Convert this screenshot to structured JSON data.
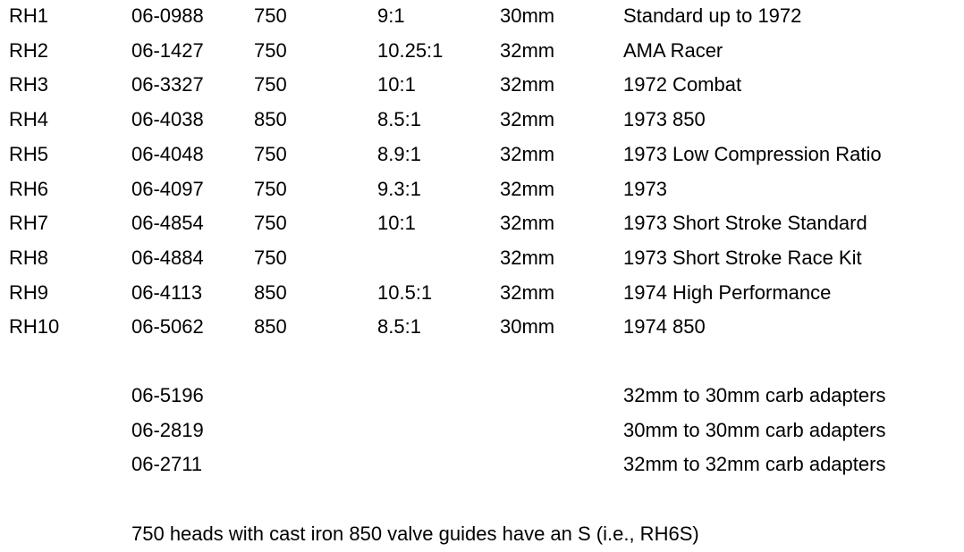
{
  "table": {
    "rows": [
      [
        "RH1",
        "06-0988",
        "750",
        "9:1",
        "30mm",
        "Standard up to 1972"
      ],
      [
        "RH2",
        "06-1427",
        "750",
        "10.25:1",
        "32mm",
        "AMA Racer"
      ],
      [
        "RH3",
        "06-3327",
        "750",
        "10:1",
        "32mm",
        "1972 Combat"
      ],
      [
        "RH4",
        "06-4038",
        "850",
        "8.5:1",
        "32mm",
        "1973 850"
      ],
      [
        "RH5",
        "06-4048",
        "750",
        "8.9:1",
        "32mm",
        "1973 Low Compression Ratio"
      ],
      [
        "RH6",
        "06-4097",
        "750",
        "9.3:1",
        "32mm",
        "1973"
      ],
      [
        "RH7",
        "06-4854",
        "750",
        "10:1",
        "32mm",
        "1973 Short Stroke Standard"
      ],
      [
        "RH8",
        "06-4884",
        "750",
        null,
        "32mm",
        "1973 Short Stroke Race Kit"
      ],
      [
        "RH9",
        "06-4113",
        "850",
        "10.5:1",
        "32mm",
        "1974 High Performance"
      ],
      [
        "RH10",
        "06-5062",
        "850",
        "8.5:1",
        "30mm",
        "1974 850"
      ]
    ]
  },
  "adapters": [
    {
      "part": "06-5196",
      "description": "32mm to 30mm carb adapters"
    },
    {
      "part": "06-2819",
      "description": "30mm to 30mm carb adapters"
    },
    {
      "part": "06-2711",
      "description": "32mm to 32mm carb adapters"
    }
  ],
  "note": "750 heads with cast iron 850 valve guides have an S (i.e., RH6S)"
}
